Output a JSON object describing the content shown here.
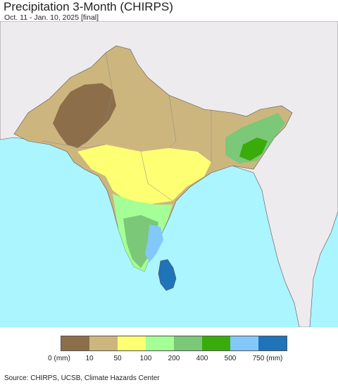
{
  "title": "Precipitation 3-Month (CHIRPS)",
  "subtitle": "Oct. 11 - Jan. 10, 2025 [final]",
  "legend": {
    "colors": [
      "#8c6e4a",
      "#cdb67e",
      "#ffff73",
      "#a3ff96",
      "#7ac878",
      "#39ac0b",
      "#82c8fa",
      "#1e73b9"
    ],
    "ticks": [
      "0 (mm)",
      "10",
      "50",
      "100",
      "200",
      "400",
      "500",
      "750 (mm)"
    ]
  },
  "source": "Source: CHIRPS, UCSB, Climate Hazards Center",
  "map_colors": {
    "ocean": "#aaf5ff",
    "land_outside": "#eeebee",
    "border": "#555555"
  }
}
